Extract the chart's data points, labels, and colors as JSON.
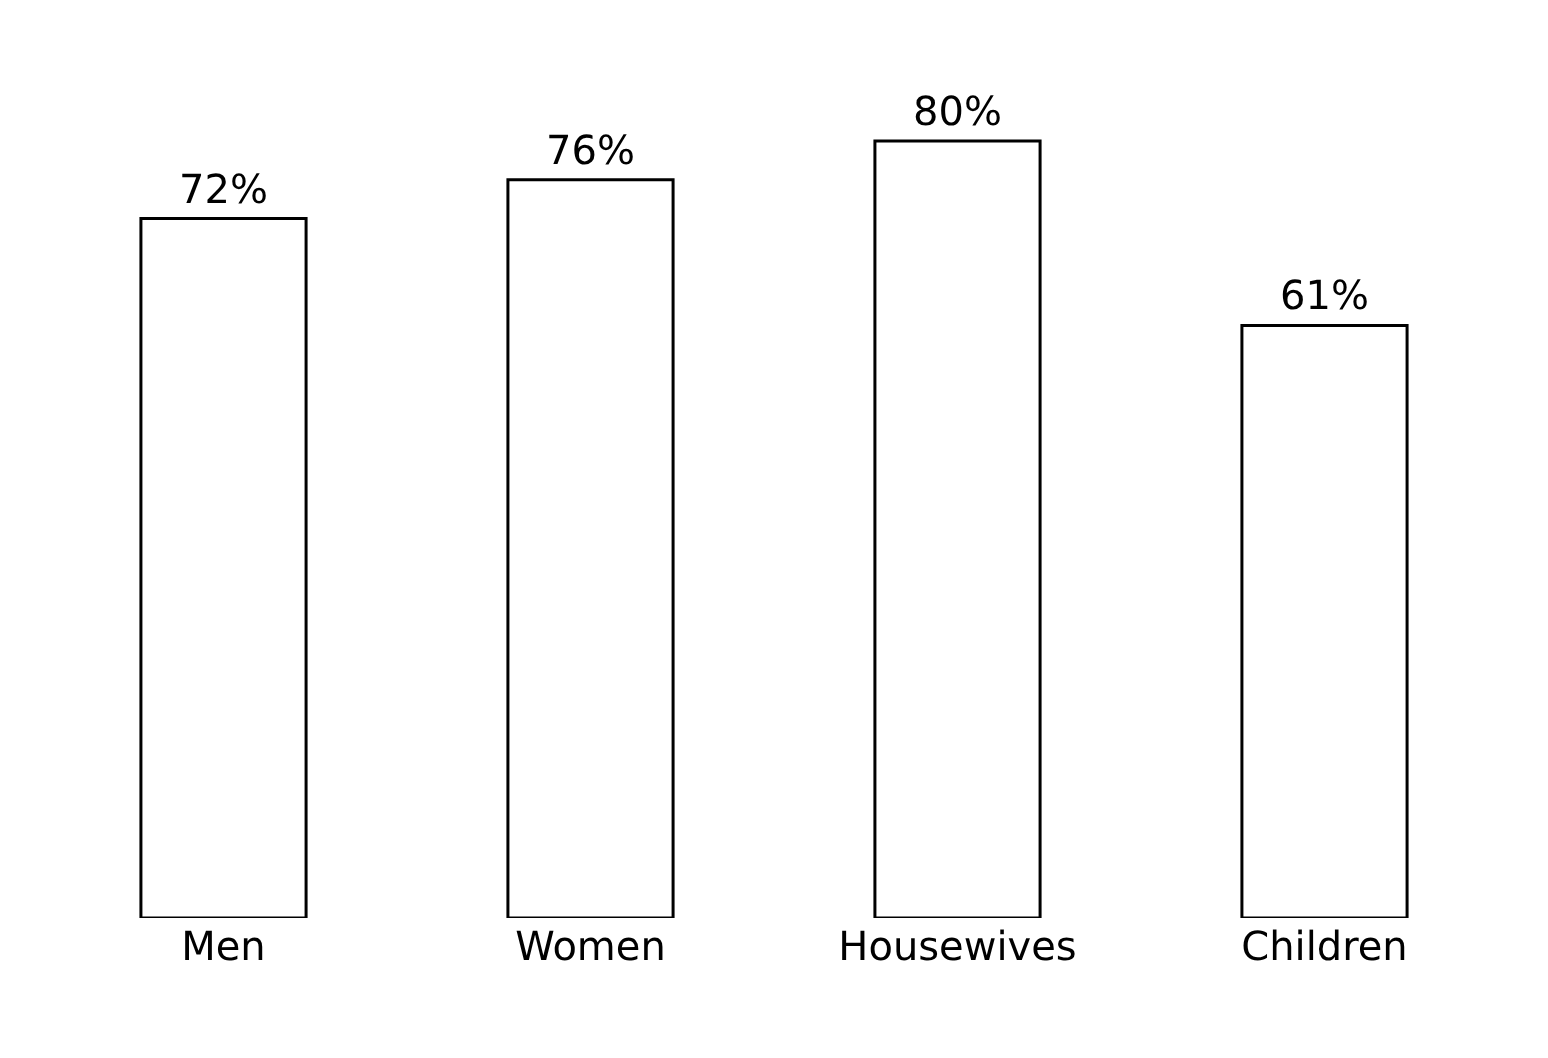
{
  "chart_data": {
    "type": "bar",
    "categories": [
      "Men",
      "Women",
      "Housewives",
      "Children"
    ],
    "values": [
      72,
      76,
      80,
      61
    ],
    "color": "#ffffff",
    "data_labels": true,
    "value_labels": [
      "72%",
      "76%",
      "80%",
      "61%"
    ]
  }
}
